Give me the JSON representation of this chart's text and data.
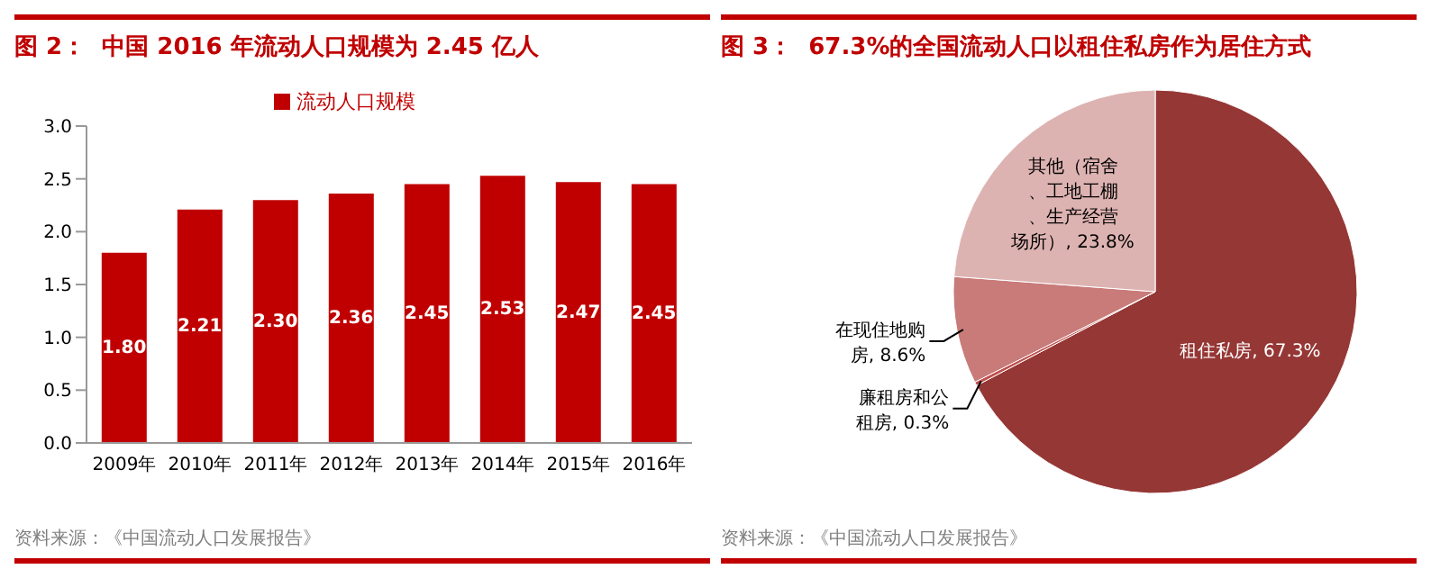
{
  "chart_data": [
    {
      "type": "bar",
      "title": "图 2：  中国 2016 年流动人口规模为 2.45 亿人",
      "categories": [
        "2009年",
        "2010年",
        "2011年",
        "2012年",
        "2013年",
        "2014年",
        "2015年",
        "2016年"
      ],
      "series": [
        {
          "name": "流动人口规模",
          "color": "#c00000",
          "values": [
            1.8,
            2.21,
            2.3,
            2.36,
            2.45,
            2.53,
            2.47,
            2.45
          ],
          "value_labels": [
            "1.80",
            "2.21",
            "2.30",
            "2.36",
            "2.45",
            "2.53",
            "2.47",
            "2.45"
          ]
        }
      ],
      "ylim": [
        0,
        3
      ],
      "yticks": [
        {
          "value": 0,
          "label": "0.0"
        },
        {
          "value": 0.5,
          "label": "0.5"
        },
        {
          "value": 1,
          "label": "1.0"
        },
        {
          "value": 1.5,
          "label": "1.5"
        },
        {
          "value": 2,
          "label": "2.0"
        },
        {
          "value": 2.5,
          "label": "2.5"
        },
        {
          "value": 3,
          "label": "3.0"
        }
      ],
      "legend": "top",
      "annotations": [
        "资料来源：《中国流动人口发展报告》"
      ]
    },
    {
      "type": "pie",
      "title": "图 3：  67.3%的全国流动人口以租住私房作为居住方式",
      "categories": [
        "租住私房",
        "廉租房和公租房",
        "在现住地购房",
        "其他（宿舍、工地工棚、生产经营场所）"
      ],
      "values": [
        67.3,
        0.3,
        8.6,
        23.8
      ],
      "colors": [
        "#953735",
        "#c0504d",
        "#c87b79",
        "#ddb3b2"
      ],
      "value_labels": [
        "67.3%",
        "0.3%",
        "8.6%",
        "23.8%"
      ],
      "annotations": [
        "资料来源：《中国流动人口发展报告》"
      ]
    }
  ]
}
